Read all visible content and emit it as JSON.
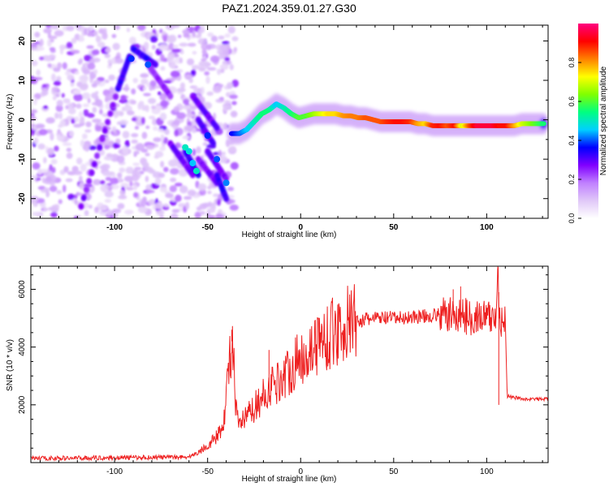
{
  "title": "PAZ1.2024.359.01.27.G30",
  "chart_data": [
    {
      "type": "heatmap",
      "xlabel": "Height of straight line (km)",
      "ylabel": "Frequency (Hz)",
      "xlim": [
        -145,
        133
      ],
      "ylim": [
        -25,
        24
      ],
      "xticks": [
        -100,
        -50,
        0,
        50,
        100
      ],
      "yticks": [
        20,
        10,
        0,
        -10,
        -20
      ],
      "colorbar": {
        "label": "Normalized spectral amplitude",
        "range": [
          0,
          1
        ],
        "ticks": [
          "0.0",
          "0.2",
          "0.4",
          "0.6",
          "0.8"
        ],
        "tick_values": [
          0.0,
          0.2,
          0.4,
          0.6,
          0.8
        ],
        "colormap": [
          "#ffffff",
          "#e0c8f8",
          "#c080ff",
          "#8000ff",
          "#0000ff",
          "#00d0ff",
          "#00ff80",
          "#80ff00",
          "#ffff00",
          "#ff8000",
          "#ff0000",
          "#ff0080"
        ]
      },
      "ridge": {
        "x": [
          -37,
          -33,
          -29,
          -25,
          -21,
          -17,
          -13,
          -9,
          -5,
          -1,
          3,
          7,
          11,
          15,
          19,
          23,
          27,
          31,
          35,
          39,
          43,
          47,
          51,
          55,
          59,
          63,
          67,
          71,
          75,
          79,
          83,
          87,
          91,
          95,
          99,
          103,
          107,
          111,
          115,
          119,
          123,
          127,
          131
        ],
        "y": [
          -3.5,
          -3.5,
          -2.5,
          -0.5,
          1.5,
          2.5,
          4.0,
          3.0,
          1.5,
          0.5,
          1.0,
          1.5,
          1.5,
          1.5,
          1.5,
          1.0,
          1.0,
          0.5,
          0.5,
          0,
          -0.5,
          -0.5,
          -0.5,
          -0.5,
          -0.5,
          -1.0,
          -1.0,
          -1.5,
          -1.5,
          -1.5,
          -1.5,
          -1.5,
          -1.5,
          -1.5,
          -1.5,
          -1.5,
          -1.5,
          -1.5,
          -1.5,
          -1.0,
          -1.0,
          -1.0,
          -1.0
        ],
        "amplitude": [
          0.35,
          0.4,
          0.45,
          0.5,
          0.55,
          0.55,
          0.45,
          0.5,
          0.55,
          0.6,
          0.6,
          0.65,
          0.7,
          0.75,
          0.75,
          0.8,
          0.82,
          0.82,
          0.85,
          0.85,
          0.85,
          0.88,
          0.9,
          0.9,
          0.88,
          0.8,
          0.75,
          0.88,
          0.9,
          0.85,
          0.9,
          0.7,
          0.85,
          0.95,
          0.95,
          0.95,
          0.9,
          0.9,
          0.8,
          0.7,
          0.65,
          0.6,
          0.55
        ]
      }
    },
    {
      "type": "line",
      "xlabel": "Height of straight line (km)",
      "ylabel": "SNR (10 * v/v)",
      "xlim": [
        -145,
        133
      ],
      "ylim": [
        0,
        6800
      ],
      "xticks": [
        -100,
        -50,
        0,
        50,
        100
      ],
      "yticks": [
        2000,
        4000,
        6000
      ],
      "series": [
        {
          "color": "#ee2020",
          "x": [
            -145,
            -130,
            -115,
            -100,
            -85,
            -70,
            -60,
            -55,
            -50,
            -45,
            -42,
            -40,
            -38,
            -37,
            -36,
            -35,
            -33,
            -30,
            -25,
            -20,
            -15,
            -10,
            -5,
            0,
            5,
            10,
            15,
            20,
            25,
            30,
            35,
            40,
            45,
            50,
            55,
            60,
            65,
            70,
            75,
            80,
            85,
            90,
            95,
            100,
            105,
            106,
            107,
            108,
            110,
            111,
            115,
            120,
            125,
            133
          ],
          "y": [
            150,
            150,
            160,
            170,
            180,
            190,
            200,
            350,
            600,
            900,
            1200,
            2200,
            3800,
            4200,
            3600,
            1800,
            1300,
            1500,
            1900,
            2300,
            2700,
            2900,
            3300,
            3600,
            3900,
            4200,
            4400,
            4600,
            4800,
            4900,
            4950,
            5000,
            5000,
            5000,
            5000,
            5050,
            5050,
            5100,
            5100,
            5100,
            5100,
            5050,
            5050,
            5000,
            5000,
            6600,
            5200,
            4900,
            4900,
            2300,
            2250,
            2200,
            2200,
            2200
          ],
          "spikes": [
            [
              -37,
              4600
            ],
            [
              -17,
              3900
            ],
            [
              5,
              4100
            ],
            [
              82,
              6000
            ],
            [
              86,
              6100
            ],
            [
              106,
              6800
            ],
            [
              106.5,
              2000
            ]
          ]
        }
      ]
    }
  ]
}
